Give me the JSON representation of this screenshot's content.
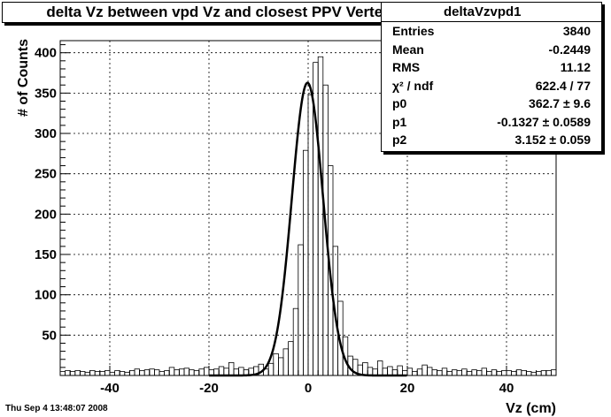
{
  "chart_data": {
    "type": "histogram",
    "title": "delta Vz between vpd Vz and closest PPV Vertex",
    "xlabel": "Vz (cm)",
    "ylabel": "# of Counts",
    "xlim": [
      -50,
      50
    ],
    "ylim": [
      0,
      415
    ],
    "xticks": [
      -40,
      -20,
      0,
      20,
      40
    ],
    "yticks": [
      50,
      100,
      150,
      200,
      250,
      300,
      350,
      400
    ],
    "grid": true,
    "bin_width": 1,
    "histogram": {
      "name": "deltaVzvpd1",
      "bin_edges_start": -50,
      "values": [
        5,
        6,
        5,
        6,
        5,
        4,
        6,
        5,
        5,
        6,
        4,
        6,
        5,
        4,
        6,
        8,
        6,
        7,
        8,
        7,
        5,
        6,
        10,
        7,
        8,
        9,
        7,
        6,
        8,
        10,
        7,
        8,
        11,
        9,
        16,
        8,
        10,
        7,
        9,
        11,
        14,
        8,
        15,
        27,
        22,
        33,
        42,
        83,
        162,
        279,
        348,
        388,
        395,
        360,
        260,
        160,
        92,
        48,
        24,
        20,
        13,
        16,
        10,
        8,
        18,
        9,
        11,
        7,
        12,
        6,
        9,
        5,
        8,
        13,
        10,
        7,
        6,
        9,
        5,
        7,
        6,
        8,
        5,
        7,
        6,
        9,
        5,
        7,
        5,
        6,
        6,
        5,
        7,
        6,
        5,
        4,
        5,
        6,
        6,
        7
      ]
    },
    "fit": {
      "type": "gaussian",
      "p0": 362.7,
      "p1": -0.1327,
      "p2": 3.152
    },
    "stats": {
      "name": "deltaVzvpd1",
      "rows": [
        {
          "label": "Entries",
          "value": "3840"
        },
        {
          "label": "Mean",
          "value": "-0.2449"
        },
        {
          "label": "RMS",
          "value": "11.12"
        },
        {
          "label": "χ² / ndf",
          "value": "622.4 / 77"
        },
        {
          "label": "p0",
          "value": "362.7 ± 9.6"
        },
        {
          "label": "p1",
          "value": "-0.1327 ± 0.0589"
        },
        {
          "label": "p2",
          "value": "3.152 ± 0.059"
        }
      ]
    }
  },
  "footer": "Thu Sep  4 13:48:07 2008"
}
